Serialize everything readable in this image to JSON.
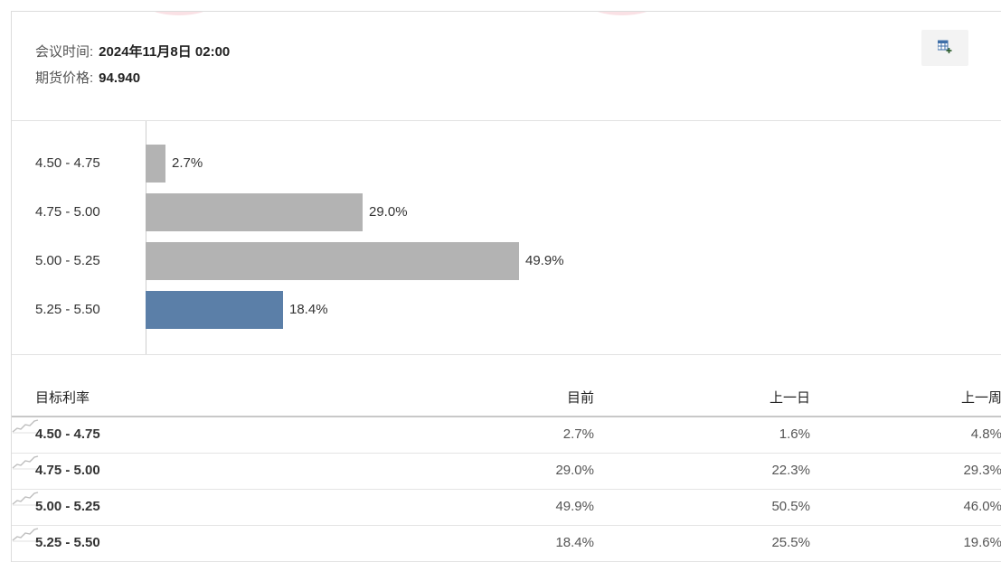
{
  "meeting": {
    "time_label": "会议时间:",
    "time_value": "2024年11月8日 02:00",
    "price_label": "期货价格:",
    "price_value": "94.940"
  },
  "toolbar": {
    "export_icon": "table-export-icon"
  },
  "colors": {
    "bar_default": "#b3b3b3",
    "bar_highlight": "#5b7fa8",
    "text": "#333333"
  },
  "chart_data": {
    "type": "bar",
    "orientation": "horizontal",
    "categories": [
      "4.50 - 4.75",
      "4.75 - 5.00",
      "5.00 - 5.25",
      "5.25 - 5.50"
    ],
    "values": [
      2.7,
      29.0,
      49.9,
      18.4
    ],
    "value_labels": [
      "2.7%",
      "29.0%",
      "49.9%",
      "18.4%"
    ],
    "highlight_index": 3,
    "xlim": [
      0,
      100
    ],
    "grid": false
  },
  "table": {
    "headers": {
      "rate": "目标利率",
      "current": "目前",
      "prev_day": "上一日",
      "prev_week": "上一周"
    },
    "rows": [
      {
        "rate": "4.50 - 4.75",
        "current": "2.7%",
        "prev_day": "1.6%",
        "prev_week": "4.8%"
      },
      {
        "rate": "4.75 - 5.00",
        "current": "29.0%",
        "prev_day": "22.3%",
        "prev_week": "29.3%"
      },
      {
        "rate": "5.00 - 5.25",
        "current": "49.9%",
        "prev_day": "50.5%",
        "prev_week": "46.0%"
      },
      {
        "rate": "5.25 - 5.50",
        "current": "18.4%",
        "prev_day": "25.5%",
        "prev_week": "19.6%"
      }
    ],
    "sparkline_icon": "trend-chart-icon"
  }
}
